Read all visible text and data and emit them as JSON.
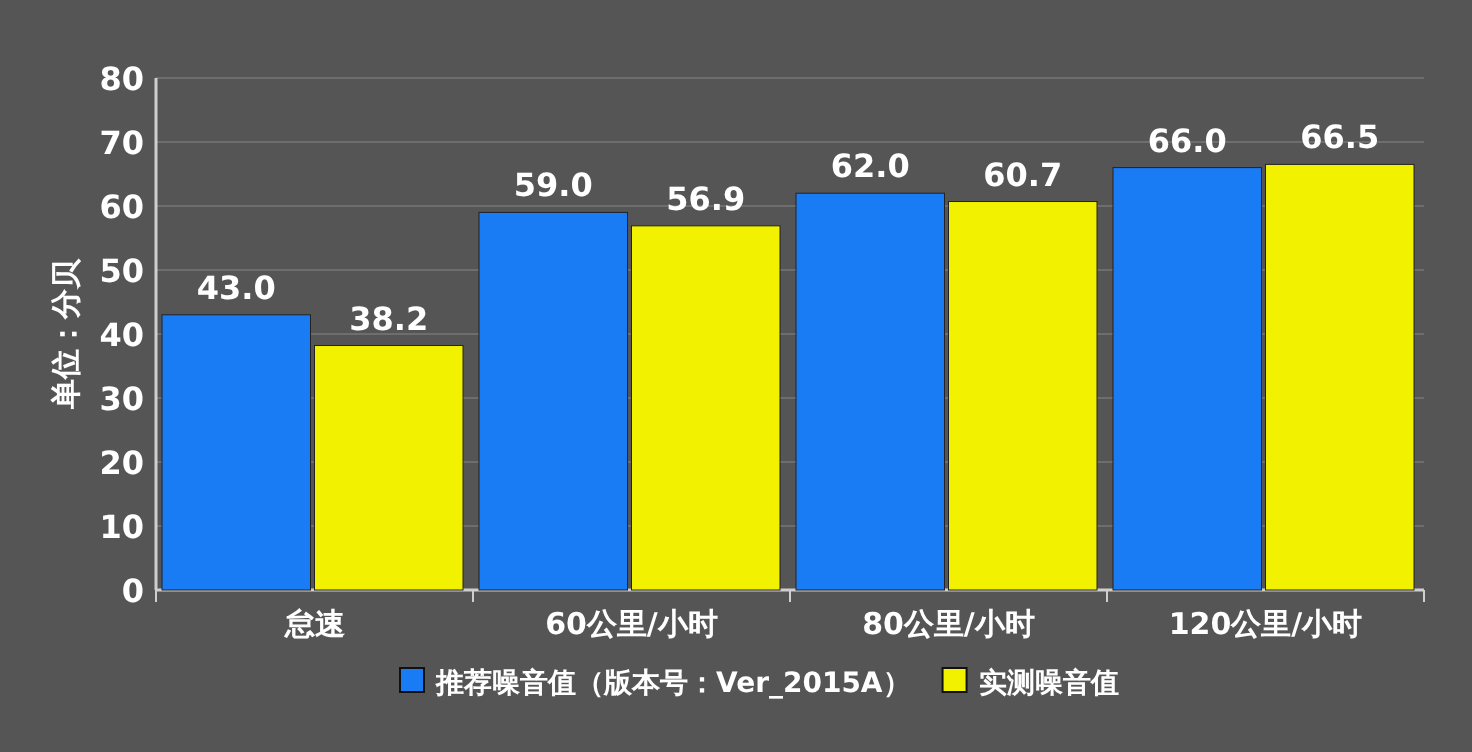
{
  "chart_data": {
    "type": "bar",
    "ylabel": "单位：分贝",
    "categories": [
      "怠速",
      "60公里/小时",
      "80公里/小时",
      "120公里/小时"
    ],
    "series": [
      {
        "name": "推荐噪音值（版本号：Ver_2015A）",
        "color": "#1a7cf5",
        "values": [
          43.0,
          59.0,
          62.0,
          66.0
        ],
        "value_labels": [
          "43.0",
          "59.0",
          "62.0",
          "66.0"
        ]
      },
      {
        "name": "实测噪音值",
        "color": "#f2f200",
        "values": [
          38.2,
          56.9,
          60.7,
          66.5
        ],
        "value_labels": [
          "38.2",
          "56.9",
          "60.7",
          "66.5"
        ]
      }
    ],
    "ylim": [
      0,
      80
    ],
    "yticks": [
      0,
      10,
      20,
      30,
      40,
      50,
      60,
      70,
      80
    ],
    "grid": "y",
    "legend": "bottom"
  }
}
